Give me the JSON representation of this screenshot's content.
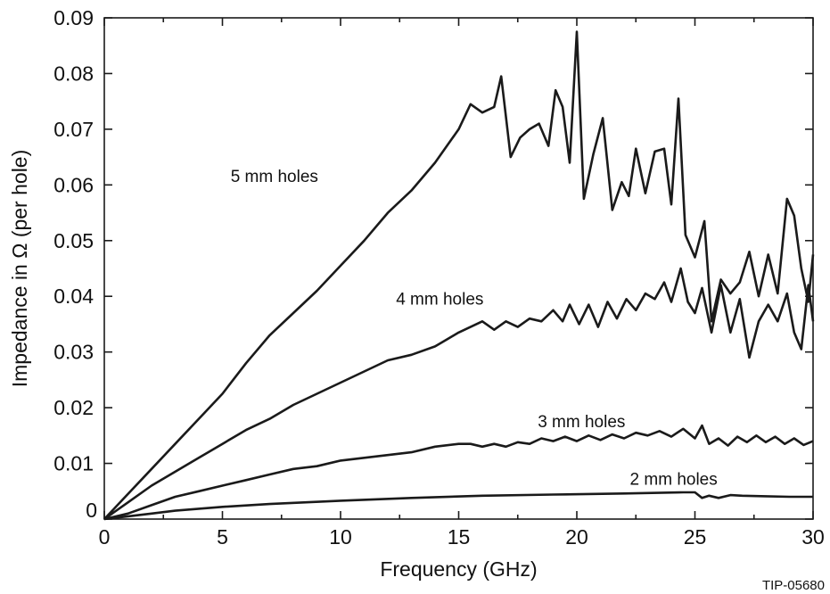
{
  "chart_data": {
    "type": "line",
    "title": "",
    "xlabel": "Frequency (GHz)",
    "ylabel": "Impedance in Ω (per hole)",
    "xlim": [
      0,
      30
    ],
    "ylim": [
      0,
      0.09
    ],
    "x_ticks": [
      "0",
      "5",
      "10",
      "15",
      "20",
      "25",
      "30"
    ],
    "y_ticks": [
      "0",
      "0.01",
      "0.02",
      "0.03",
      "0.04",
      "0.05",
      "0.06",
      "0.07",
      "0.08",
      "0.09"
    ],
    "grid": false,
    "figure_id": "TIP-05680",
    "series": [
      {
        "name": "5 mm holes",
        "points": [
          [
            0,
            0
          ],
          [
            1,
            0.0045
          ],
          [
            2,
            0.009
          ],
          [
            3,
            0.0135
          ],
          [
            4,
            0.018
          ],
          [
            5,
            0.0225
          ],
          [
            6,
            0.028
          ],
          [
            7,
            0.033
          ],
          [
            8,
            0.037
          ],
          [
            9,
            0.041
          ],
          [
            10,
            0.0455
          ],
          [
            11,
            0.05
          ],
          [
            12,
            0.055
          ],
          [
            13,
            0.059
          ],
          [
            14,
            0.064
          ],
          [
            15,
            0.07
          ],
          [
            15.5,
            0.0745
          ],
          [
            16,
            0.073
          ],
          [
            16.5,
            0.074
          ],
          [
            16.8,
            0.0795
          ],
          [
            17.2,
            0.065
          ],
          [
            17.6,
            0.0685
          ],
          [
            18,
            0.07
          ],
          [
            18.4,
            0.071
          ],
          [
            18.8,
            0.067
          ],
          [
            19.1,
            0.077
          ],
          [
            19.4,
            0.074
          ],
          [
            19.7,
            0.064
          ],
          [
            20,
            0.0875
          ],
          [
            20.3,
            0.0575
          ],
          [
            20.7,
            0.0655
          ],
          [
            21.1,
            0.072
          ],
          [
            21.5,
            0.0555
          ],
          [
            21.9,
            0.0605
          ],
          [
            22.2,
            0.058
          ],
          [
            22.5,
            0.0665
          ],
          [
            22.9,
            0.0585
          ],
          [
            23.3,
            0.066
          ],
          [
            23.7,
            0.0665
          ],
          [
            24,
            0.0565
          ],
          [
            24.3,
            0.0755
          ],
          [
            24.6,
            0.051
          ],
          [
            25,
            0.047
          ],
          [
            25.4,
            0.0535
          ],
          [
            25.7,
            0.0355
          ],
          [
            26.1,
            0.043
          ],
          [
            26.5,
            0.0405
          ],
          [
            26.9,
            0.0425
          ],
          [
            27.3,
            0.048
          ],
          [
            27.7,
            0.04
          ],
          [
            28.1,
            0.0475
          ],
          [
            28.5,
            0.0405
          ],
          [
            28.9,
            0.0575
          ],
          [
            29.2,
            0.0545
          ],
          [
            29.5,
            0.045
          ],
          [
            29.8,
            0.039
          ],
          [
            30,
            0.0475
          ]
        ]
      },
      {
        "name": "4 mm holes",
        "points": [
          [
            0,
            0
          ],
          [
            1,
            0.003
          ],
          [
            2,
            0.006
          ],
          [
            3,
            0.0085
          ],
          [
            4,
            0.011
          ],
          [
            5,
            0.0135
          ],
          [
            6,
            0.016
          ],
          [
            7,
            0.018
          ],
          [
            8,
            0.0205
          ],
          [
            9,
            0.0225
          ],
          [
            10,
            0.0245
          ],
          [
            11,
            0.0265
          ],
          [
            12,
            0.0285
          ],
          [
            13,
            0.0295
          ],
          [
            14,
            0.031
          ],
          [
            15,
            0.0335
          ],
          [
            16,
            0.0355
          ],
          [
            16.5,
            0.034
          ],
          [
            17,
            0.0355
          ],
          [
            17.5,
            0.0345
          ],
          [
            18,
            0.036
          ],
          [
            18.5,
            0.0355
          ],
          [
            19,
            0.0375
          ],
          [
            19.4,
            0.0355
          ],
          [
            19.7,
            0.0385
          ],
          [
            20.1,
            0.035
          ],
          [
            20.5,
            0.0385
          ],
          [
            20.9,
            0.0345
          ],
          [
            21.3,
            0.039
          ],
          [
            21.7,
            0.036
          ],
          [
            22.1,
            0.0395
          ],
          [
            22.5,
            0.0375
          ],
          [
            22.9,
            0.0405
          ],
          [
            23.3,
            0.0395
          ],
          [
            23.7,
            0.0425
          ],
          [
            24,
            0.039
          ],
          [
            24.4,
            0.045
          ],
          [
            24.7,
            0.039
          ],
          [
            25,
            0.037
          ],
          [
            25.3,
            0.0415
          ],
          [
            25.7,
            0.0335
          ],
          [
            26.1,
            0.042
          ],
          [
            26.5,
            0.0335
          ],
          [
            26.9,
            0.0395
          ],
          [
            27.3,
            0.029
          ],
          [
            27.7,
            0.0355
          ],
          [
            28.1,
            0.0385
          ],
          [
            28.5,
            0.0355
          ],
          [
            28.9,
            0.0405
          ],
          [
            29.2,
            0.0335
          ],
          [
            29.5,
            0.0305
          ],
          [
            29.8,
            0.042
          ],
          [
            30,
            0.0355
          ]
        ]
      },
      {
        "name": "3 mm holes",
        "points": [
          [
            0,
            0
          ],
          [
            1,
            0.001
          ],
          [
            2,
            0.0025
          ],
          [
            3,
            0.004
          ],
          [
            4,
            0.005
          ],
          [
            5,
            0.006
          ],
          [
            6,
            0.007
          ],
          [
            7,
            0.008
          ],
          [
            8,
            0.009
          ],
          [
            9,
            0.0095
          ],
          [
            10,
            0.0105
          ],
          [
            11,
            0.011
          ],
          [
            12,
            0.0115
          ],
          [
            13,
            0.012
          ],
          [
            14,
            0.013
          ],
          [
            15,
            0.0135
          ],
          [
            15.5,
            0.0135
          ],
          [
            16,
            0.013
          ],
          [
            16.5,
            0.0135
          ],
          [
            17,
            0.013
          ],
          [
            17.5,
            0.0138
          ],
          [
            18,
            0.0135
          ],
          [
            18.5,
            0.0145
          ],
          [
            19,
            0.014
          ],
          [
            19.5,
            0.0148
          ],
          [
            20,
            0.014
          ],
          [
            20.5,
            0.015
          ],
          [
            21,
            0.0142
          ],
          [
            21.5,
            0.0152
          ],
          [
            22,
            0.0145
          ],
          [
            22.5,
            0.0155
          ],
          [
            23,
            0.015
          ],
          [
            23.5,
            0.0158
          ],
          [
            24,
            0.0148
          ],
          [
            24.5,
            0.0162
          ],
          [
            25,
            0.0145
          ],
          [
            25.3,
            0.0168
          ],
          [
            25.6,
            0.0135
          ],
          [
            26,
            0.0145
          ],
          [
            26.4,
            0.0132
          ],
          [
            26.8,
            0.0148
          ],
          [
            27.2,
            0.0138
          ],
          [
            27.6,
            0.015
          ],
          [
            28,
            0.0138
          ],
          [
            28.4,
            0.0148
          ],
          [
            28.8,
            0.0135
          ],
          [
            29.2,
            0.0145
          ],
          [
            29.6,
            0.0133
          ],
          [
            30,
            0.014
          ]
        ]
      },
      {
        "name": "2 mm holes",
        "points": [
          [
            0,
            0
          ],
          [
            1,
            0.0005
          ],
          [
            2,
            0.001
          ],
          [
            3,
            0.0015
          ],
          [
            5,
            0.0022
          ],
          [
            7,
            0.0027
          ],
          [
            10,
            0.0033
          ],
          [
            13,
            0.0038
          ],
          [
            16,
            0.0042
          ],
          [
            19,
            0.0044
          ],
          [
            22,
            0.0046
          ],
          [
            24.5,
            0.0048
          ],
          [
            25,
            0.0048
          ],
          [
            25.3,
            0.0038
          ],
          [
            25.6,
            0.0042
          ],
          [
            26,
            0.0038
          ],
          [
            26.5,
            0.0043
          ],
          [
            27,
            0.0042
          ],
          [
            28,
            0.0041
          ],
          [
            29,
            0.004
          ],
          [
            30,
            0.004
          ]
        ]
      }
    ],
    "annotations": [
      {
        "text": "5 mm holes",
        "x": 7.2,
        "y": 0.0605
      },
      {
        "text": "4 mm holes",
        "x": 14.2,
        "y": 0.0385
      },
      {
        "text": "3 mm holes",
        "x": 20.2,
        "y": 0.0165
      },
      {
        "text": "2 mm holes",
        "x": 24.1,
        "y": 0.0062
      }
    ]
  }
}
